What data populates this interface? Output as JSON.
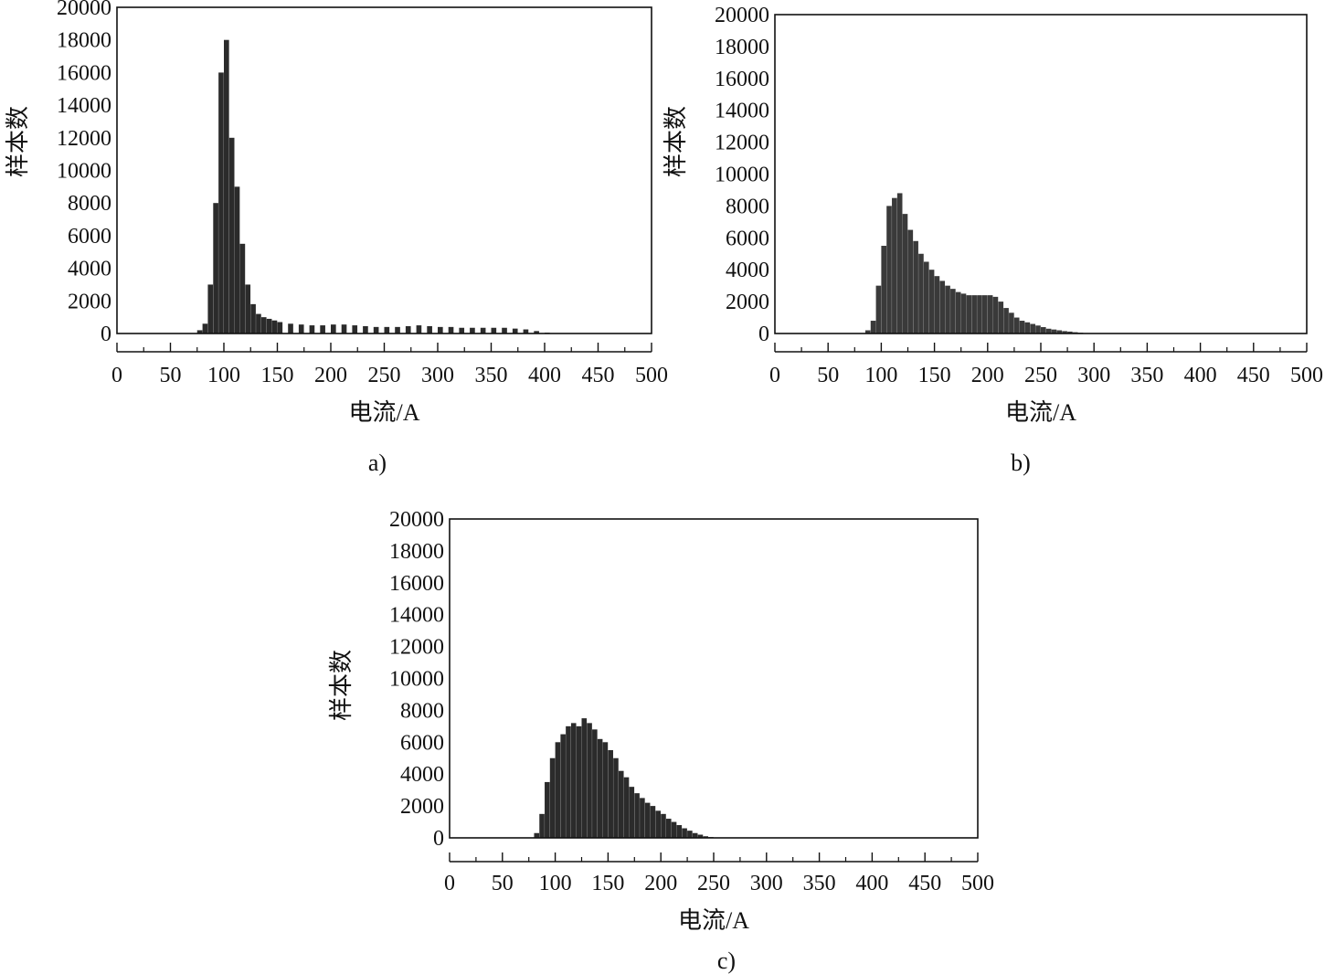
{
  "chart_data": [
    {
      "type": "bar",
      "panel_label": "a)",
      "xlabel": "电流/A",
      "ylabel": "样本数",
      "xlim": [
        0,
        500
      ],
      "ylim": [
        0,
        20000
      ],
      "xticks": [
        "0",
        "50",
        "100",
        "150",
        "200",
        "250",
        "300",
        "350",
        "400",
        "450",
        "500"
      ],
      "yticks": [
        "0",
        "2000",
        "4000",
        "6000",
        "8000",
        "10000",
        "12000",
        "14000",
        "16000",
        "18000",
        "20000"
      ],
      "grid": false,
      "bar_color": "#2b2b2b",
      "bin_width": 5,
      "bins": [
        {
          "x": 75,
          "y": 200
        },
        {
          "x": 80,
          "y": 600
        },
        {
          "x": 85,
          "y": 3000
        },
        {
          "x": 90,
          "y": 8000
        },
        {
          "x": 95,
          "y": 16000
        },
        {
          "x": 100,
          "y": 18000
        },
        {
          "x": 105,
          "y": 12000
        },
        {
          "x": 110,
          "y": 9000
        },
        {
          "x": 115,
          "y": 5500
        },
        {
          "x": 120,
          "y": 3000
        },
        {
          "x": 125,
          "y": 1800
        },
        {
          "x": 130,
          "y": 1200
        },
        {
          "x": 135,
          "y": 1000
        },
        {
          "x": 140,
          "y": 900
        },
        {
          "x": 145,
          "y": 800
        },
        {
          "x": 150,
          "y": 700
        },
        {
          "x": 160,
          "y": 600
        },
        {
          "x": 170,
          "y": 550
        },
        {
          "x": 180,
          "y": 500
        },
        {
          "x": 190,
          "y": 500
        },
        {
          "x": 200,
          "y": 550
        },
        {
          "x": 210,
          "y": 550
        },
        {
          "x": 220,
          "y": 500
        },
        {
          "x": 230,
          "y": 450
        },
        {
          "x": 240,
          "y": 400
        },
        {
          "x": 250,
          "y": 400
        },
        {
          "x": 260,
          "y": 400
        },
        {
          "x": 270,
          "y": 450
        },
        {
          "x": 280,
          "y": 500
        },
        {
          "x": 290,
          "y": 450
        },
        {
          "x": 300,
          "y": 400
        },
        {
          "x": 310,
          "y": 400
        },
        {
          "x": 320,
          "y": 350
        },
        {
          "x": 330,
          "y": 350
        },
        {
          "x": 340,
          "y": 350
        },
        {
          "x": 350,
          "y": 350
        },
        {
          "x": 360,
          "y": 350
        },
        {
          "x": 370,
          "y": 300
        },
        {
          "x": 380,
          "y": 250
        },
        {
          "x": 390,
          "y": 150
        },
        {
          "x": 400,
          "y": 50
        }
      ]
    },
    {
      "type": "bar",
      "panel_label": "b)",
      "xlabel": "电流/A",
      "ylabel": "样本数",
      "xlim": [
        0,
        500
      ],
      "ylim": [
        0,
        20000
      ],
      "xticks": [
        "0",
        "50",
        "100",
        "150",
        "200",
        "250",
        "300",
        "350",
        "400",
        "450",
        "500"
      ],
      "yticks": [
        "0",
        "2000",
        "4000",
        "6000",
        "8000",
        "10000",
        "12000",
        "14000",
        "16000",
        "18000",
        "20000"
      ],
      "grid": false,
      "bar_color": "#3a3a3a",
      "bin_width": 5,
      "bins": [
        {
          "x": 85,
          "y": 200
        },
        {
          "x": 90,
          "y": 800
        },
        {
          "x": 95,
          "y": 3000
        },
        {
          "x": 100,
          "y": 5500
        },
        {
          "x": 105,
          "y": 8000
        },
        {
          "x": 110,
          "y": 8500
        },
        {
          "x": 115,
          "y": 8800
        },
        {
          "x": 120,
          "y": 7500
        },
        {
          "x": 125,
          "y": 6500
        },
        {
          "x": 130,
          "y": 5800
        },
        {
          "x": 135,
          "y": 5000
        },
        {
          "x": 140,
          "y": 4500
        },
        {
          "x": 145,
          "y": 4000
        },
        {
          "x": 150,
          "y": 3600
        },
        {
          "x": 155,
          "y": 3300
        },
        {
          "x": 160,
          "y": 3000
        },
        {
          "x": 165,
          "y": 2800
        },
        {
          "x": 170,
          "y": 2600
        },
        {
          "x": 175,
          "y": 2500
        },
        {
          "x": 180,
          "y": 2400
        },
        {
          "x": 185,
          "y": 2400
        },
        {
          "x": 190,
          "y": 2400
        },
        {
          "x": 195,
          "y": 2400
        },
        {
          "x": 200,
          "y": 2400
        },
        {
          "x": 205,
          "y": 2300
        },
        {
          "x": 210,
          "y": 2000
        },
        {
          "x": 215,
          "y": 1600
        },
        {
          "x": 220,
          "y": 1300
        },
        {
          "x": 225,
          "y": 1000
        },
        {
          "x": 230,
          "y": 800
        },
        {
          "x": 235,
          "y": 700
        },
        {
          "x": 240,
          "y": 600
        },
        {
          "x": 245,
          "y": 500
        },
        {
          "x": 250,
          "y": 400
        },
        {
          "x": 255,
          "y": 300
        },
        {
          "x": 260,
          "y": 250
        },
        {
          "x": 265,
          "y": 200
        },
        {
          "x": 270,
          "y": 150
        },
        {
          "x": 275,
          "y": 120
        },
        {
          "x": 280,
          "y": 80
        },
        {
          "x": 285,
          "y": 50
        },
        {
          "x": 290,
          "y": 30
        }
      ]
    },
    {
      "type": "bar",
      "panel_label": "c)",
      "xlabel": "电流/A",
      "ylabel": "样本数",
      "xlim": [
        0,
        500
      ],
      "ylim": [
        0,
        20000
      ],
      "xticks": [
        "0",
        "50",
        "100",
        "150",
        "200",
        "250",
        "300",
        "350",
        "400",
        "450",
        "500"
      ],
      "yticks": [
        "0",
        "2000",
        "4000",
        "6000",
        "8000",
        "10000",
        "12000",
        "14000",
        "16000",
        "18000",
        "20000"
      ],
      "grid": false,
      "bar_color": "#2b2b2b",
      "bin_width": 5,
      "bins": [
        {
          "x": 80,
          "y": 300
        },
        {
          "x": 85,
          "y": 1500
        },
        {
          "x": 90,
          "y": 3500
        },
        {
          "x": 95,
          "y": 5000
        },
        {
          "x": 100,
          "y": 6000
        },
        {
          "x": 105,
          "y": 6500
        },
        {
          "x": 110,
          "y": 7000
        },
        {
          "x": 115,
          "y": 7200
        },
        {
          "x": 120,
          "y": 7000
        },
        {
          "x": 125,
          "y": 7500
        },
        {
          "x": 130,
          "y": 7200
        },
        {
          "x": 135,
          "y": 6800
        },
        {
          "x": 140,
          "y": 6200
        },
        {
          "x": 145,
          "y": 6000
        },
        {
          "x": 150,
          "y": 5500
        },
        {
          "x": 155,
          "y": 5000
        },
        {
          "x": 160,
          "y": 4200
        },
        {
          "x": 165,
          "y": 3800
        },
        {
          "x": 170,
          "y": 3200
        },
        {
          "x": 175,
          "y": 2800
        },
        {
          "x": 180,
          "y": 2500
        },
        {
          "x": 185,
          "y": 2200
        },
        {
          "x": 190,
          "y": 2000
        },
        {
          "x": 195,
          "y": 1700
        },
        {
          "x": 200,
          "y": 1500
        },
        {
          "x": 205,
          "y": 1200
        },
        {
          "x": 210,
          "y": 1000
        },
        {
          "x": 215,
          "y": 800
        },
        {
          "x": 220,
          "y": 600
        },
        {
          "x": 225,
          "y": 450
        },
        {
          "x": 230,
          "y": 300
        },
        {
          "x": 235,
          "y": 200
        },
        {
          "x": 240,
          "y": 100
        },
        {
          "x": 245,
          "y": 50
        }
      ]
    }
  ]
}
